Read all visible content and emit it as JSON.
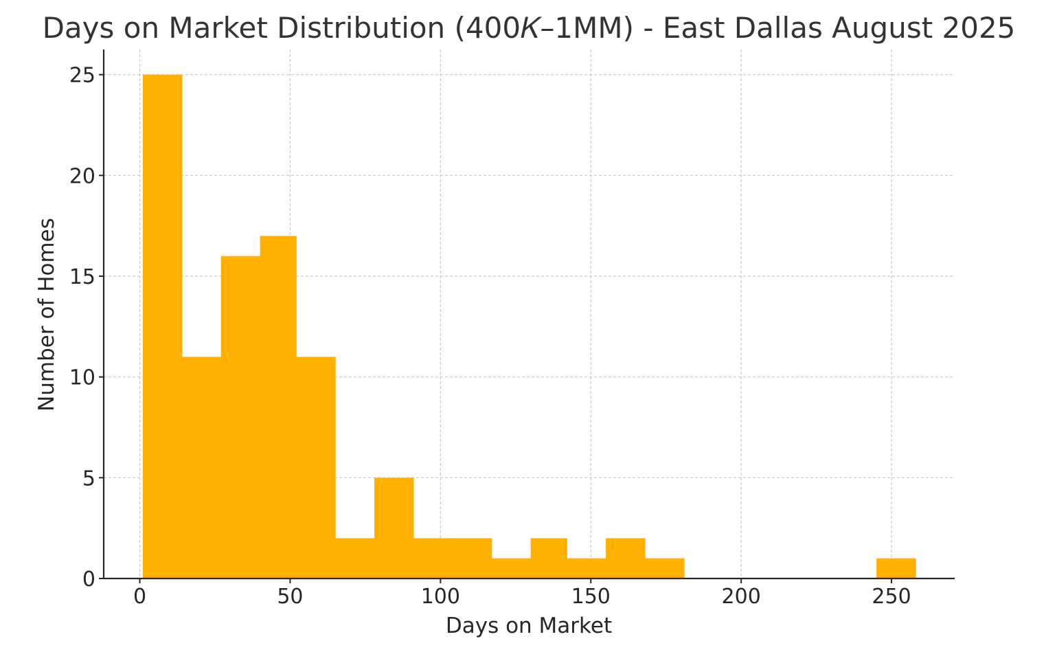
{
  "chart_data": {
    "type": "histogram",
    "title": "Days on Market Distribution (400𝐾–1MM) - East Dallas August 2025",
    "xlabel": "Days on Market",
    "ylabel": "Number of Homes",
    "xlim": [
      -12,
      271
    ],
    "ylim": [
      0,
      26.25
    ],
    "xticks": [
      0,
      50,
      100,
      150,
      200,
      250
    ],
    "yticks": [
      0,
      5,
      10,
      15,
      20,
      25
    ],
    "grid": true,
    "bar_color": "#ffb000",
    "bins": [
      {
        "x0": 1,
        "x1": 14,
        "count": 25
      },
      {
        "x0": 14,
        "x1": 27,
        "count": 11
      },
      {
        "x0": 27,
        "x1": 40,
        "count": 16
      },
      {
        "x0": 40,
        "x1": 52,
        "count": 17
      },
      {
        "x0": 52,
        "x1": 65,
        "count": 11
      },
      {
        "x0": 65,
        "x1": 78,
        "count": 2
      },
      {
        "x0": 78,
        "x1": 91,
        "count": 5
      },
      {
        "x0": 91,
        "x1": 104,
        "count": 2
      },
      {
        "x0": 104,
        "x1": 117,
        "count": 2
      },
      {
        "x0": 117,
        "x1": 130,
        "count": 1
      },
      {
        "x0": 130,
        "x1": 142,
        "count": 2
      },
      {
        "x0": 142,
        "x1": 155,
        "count": 1
      },
      {
        "x0": 155,
        "x1": 168,
        "count": 2
      },
      {
        "x0": 168,
        "x1": 181,
        "count": 1
      },
      {
        "x0": 181,
        "x1": 194,
        "count": 0
      },
      {
        "x0": 194,
        "x1": 207,
        "count": 0
      },
      {
        "x0": 207,
        "x1": 220,
        "count": 0
      },
      {
        "x0": 220,
        "x1": 232,
        "count": 0
      },
      {
        "x0": 232,
        "x1": 245,
        "count": 0
      },
      {
        "x0": 245,
        "x1": 258,
        "count": 1
      }
    ]
  }
}
